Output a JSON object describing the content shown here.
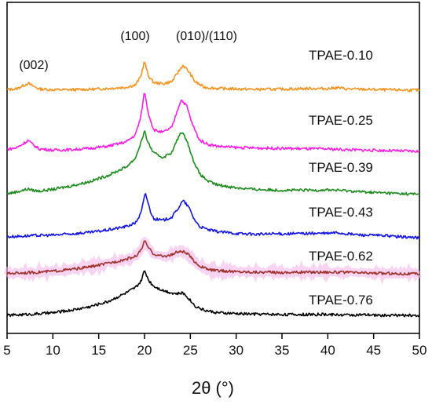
{
  "chart_data": {
    "type": "line",
    "title": "",
    "xlabel": "2θ (°)",
    "ylabel": "",
    "xlim": [
      5,
      50
    ],
    "xticks": [
      5,
      10,
      15,
      20,
      25,
      30,
      35,
      40,
      45,
      50
    ],
    "grid": false,
    "legend": "none",
    "annotations": [
      {
        "text": "(002)",
        "x": 7.3
      },
      {
        "text": "(100)",
        "x": 20.0
      },
      {
        "text": "(010)/(110)",
        "x": 24.4
      }
    ],
    "series": [
      {
        "name": "TPAE-0.10",
        "color": "#f7931e",
        "x": [
          5,
          6,
          6.8,
          7.3,
          7.8,
          8.5,
          10,
          12,
          14,
          16,
          18,
          19,
          19.6,
          20.0,
          20.4,
          21,
          22,
          23,
          23.6,
          24.2,
          24.8,
          25.5,
          26.5,
          28,
          30,
          32,
          35,
          38,
          40,
          41,
          42,
          44,
          46,
          48,
          50
        ],
        "y": [
          0.08,
          0.15,
          0.55,
          0.8,
          0.5,
          0.15,
          0.05,
          0.06,
          0.1,
          0.2,
          0.35,
          0.6,
          1.6,
          3.4,
          1.7,
          0.9,
          0.75,
          1.0,
          2.0,
          2.9,
          2.2,
          1.0,
          0.35,
          0.2,
          0.15,
          0.1,
          0.12,
          0.2,
          0.18,
          0.3,
          0.15,
          0.1,
          0.05,
          0.03,
          0.0
        ]
      },
      {
        "name": "TPAE-0.25",
        "color": "#ff1fe3",
        "x": [
          5,
          6,
          6.8,
          7.3,
          7.8,
          8.5,
          10,
          12,
          14,
          16,
          18,
          19,
          19.6,
          20.0,
          20.4,
          21,
          22,
          23,
          23.6,
          24.0,
          24.6,
          25.2,
          26,
          27,
          28,
          30,
          32,
          35,
          38,
          40,
          42,
          44,
          46,
          48,
          50
        ],
        "y": [
          0.25,
          0.4,
          0.9,
          1.3,
          0.8,
          0.3,
          0.15,
          0.2,
          0.35,
          0.6,
          1.1,
          1.9,
          4.0,
          7.0,
          4.5,
          2.5,
          2.2,
          2.8,
          4.8,
          6.0,
          5.3,
          3.2,
          1.3,
          0.8,
          0.6,
          0.45,
          0.4,
          0.35,
          0.3,
          0.28,
          0.2,
          0.15,
          0.1,
          0.05,
          0.0
        ]
      },
      {
        "name": "TPAE-0.39",
        "color": "#1e8c1e",
        "x": [
          5,
          6,
          6.8,
          7.3,
          7.8,
          8.5,
          10,
          12,
          14,
          16,
          18,
          19,
          19.6,
          20.0,
          20.4,
          21,
          22,
          23,
          23.6,
          24.0,
          24.6,
          25.2,
          26,
          27,
          28,
          30,
          32,
          35,
          38,
          40,
          42,
          44,
          46,
          48,
          50
        ],
        "y": [
          0.1,
          0.3,
          0.5,
          0.65,
          0.5,
          0.4,
          0.6,
          1.0,
          1.5,
          2.2,
          3.2,
          4.2,
          6.0,
          7.3,
          6.0,
          4.8,
          4.3,
          4.9,
          6.4,
          7.3,
          6.4,
          4.3,
          2.4,
          1.5,
          1.1,
          0.8,
          0.6,
          0.5,
          0.5,
          0.55,
          0.45,
          0.3,
          0.2,
          0.1,
          0.05
        ]
      },
      {
        "name": "TPAE-0.43",
        "color": "#1414e6",
        "x": [
          5,
          6,
          7,
          8,
          10,
          12,
          14,
          16,
          18,
          19,
          19.6,
          20.1,
          20.6,
          21,
          22,
          23,
          23.6,
          24.2,
          24.8,
          25.4,
          26,
          27,
          28,
          30,
          32,
          35,
          38,
          40,
          41,
          42,
          44,
          46,
          48,
          50
        ],
        "y": [
          0.1,
          0.15,
          0.2,
          0.25,
          0.3,
          0.45,
          0.6,
          0.9,
          1.3,
          1.7,
          2.8,
          5.2,
          3.2,
          2.2,
          2.0,
          2.4,
          3.3,
          4.3,
          3.6,
          2.2,
          1.3,
          0.9,
          0.7,
          0.5,
          0.4,
          0.45,
          0.5,
          0.5,
          0.6,
          0.45,
          0.3,
          0.25,
          0.1,
          0.0
        ]
      },
      {
        "name": "TPAE-0.62",
        "color": "#a0322d",
        "x": [
          5,
          6,
          8,
          10,
          12,
          14,
          16,
          18,
          19,
          19.6,
          20.0,
          20.5,
          21,
          22,
          23,
          23.5,
          24.1,
          24.7,
          25.3,
          26,
          27,
          28,
          30,
          32,
          35,
          38,
          40,
          42,
          44,
          46,
          48,
          50
        ],
        "y": [
          0.0,
          0.1,
          0.15,
          0.3,
          0.5,
          0.8,
          1.2,
          1.7,
          2.0,
          2.7,
          3.8,
          2.9,
          2.3,
          2.0,
          2.2,
          2.5,
          2.6,
          2.3,
          1.6,
          0.9,
          0.5,
          0.35,
          0.25,
          0.2,
          0.15,
          0.2,
          0.2,
          0.15,
          0.1,
          0.05,
          0.0,
          0.0
        ]
      },
      {
        "name": "TPAE-0.76",
        "color": "#000000",
        "x": [
          5,
          6,
          8,
          10,
          12,
          14,
          16,
          18,
          19,
          19.6,
          20.0,
          20.5,
          21,
          22,
          23,
          23.6,
          24.2,
          24.8,
          25.5,
          26.5,
          28,
          30,
          32,
          35,
          38,
          40,
          42,
          44,
          46,
          48,
          50
        ],
        "y": [
          0.0,
          0.05,
          0.15,
          0.3,
          0.6,
          1.0,
          1.6,
          2.6,
          3.2,
          3.9,
          5.2,
          4.0,
          3.4,
          2.9,
          2.6,
          2.5,
          2.6,
          2.0,
          1.1,
          0.6,
          0.3,
          0.2,
          0.15,
          0.1,
          0.1,
          0.1,
          0.05,
          0.05,
          0.0,
          0.0,
          0.0
        ]
      }
    ]
  }
}
